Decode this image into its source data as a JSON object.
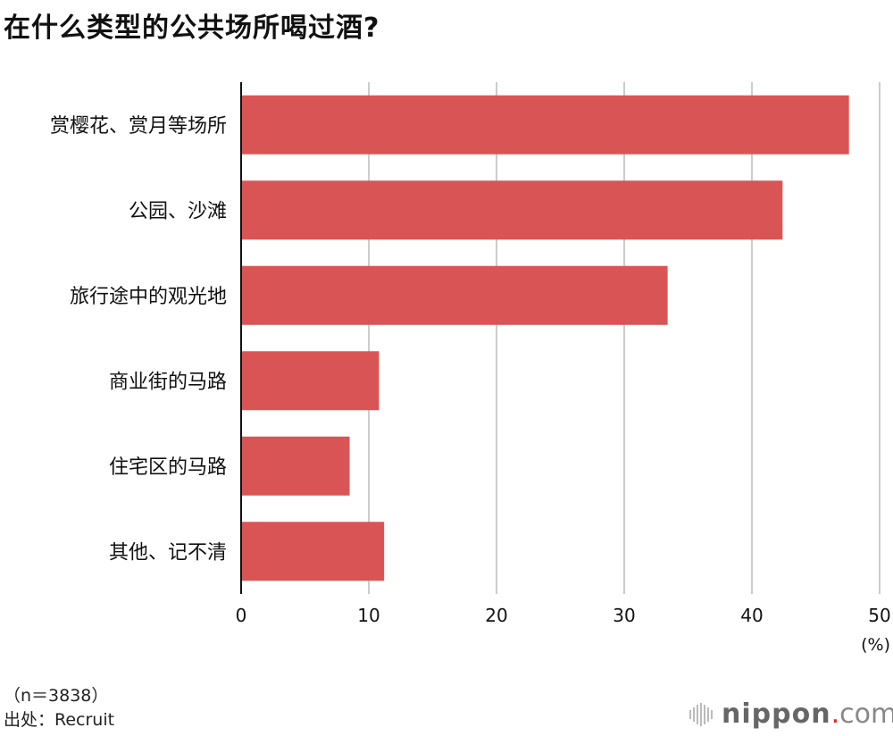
{
  "title": "在什么类型的公共场所喝过酒?",
  "chart_data": {
    "type": "bar",
    "orientation": "horizontal",
    "title": "在什么类型的公共场所喝过酒?",
    "categories": [
      "赏樱花、赏月等场所",
      "公园、沙滩",
      "旅行途中的观光地",
      "商业街的马路",
      "住宅区的马路",
      "其他、记不清"
    ],
    "values": [
      47.6,
      42.4,
      33.4,
      10.8,
      8.5,
      11.2
    ],
    "xlim": [
      0,
      50
    ],
    "xticks": [
      0,
      10,
      20,
      30,
      40,
      50
    ],
    "xunit": "(%)",
    "grid": true,
    "bar_color": "#d95555",
    "grid_color": "#cccccc"
  },
  "footer": {
    "sample": "（n＝3838）",
    "source": "出处：Recruit"
  },
  "logo": {
    "name": "nippon",
    "dot": ".",
    "tld": "com"
  }
}
